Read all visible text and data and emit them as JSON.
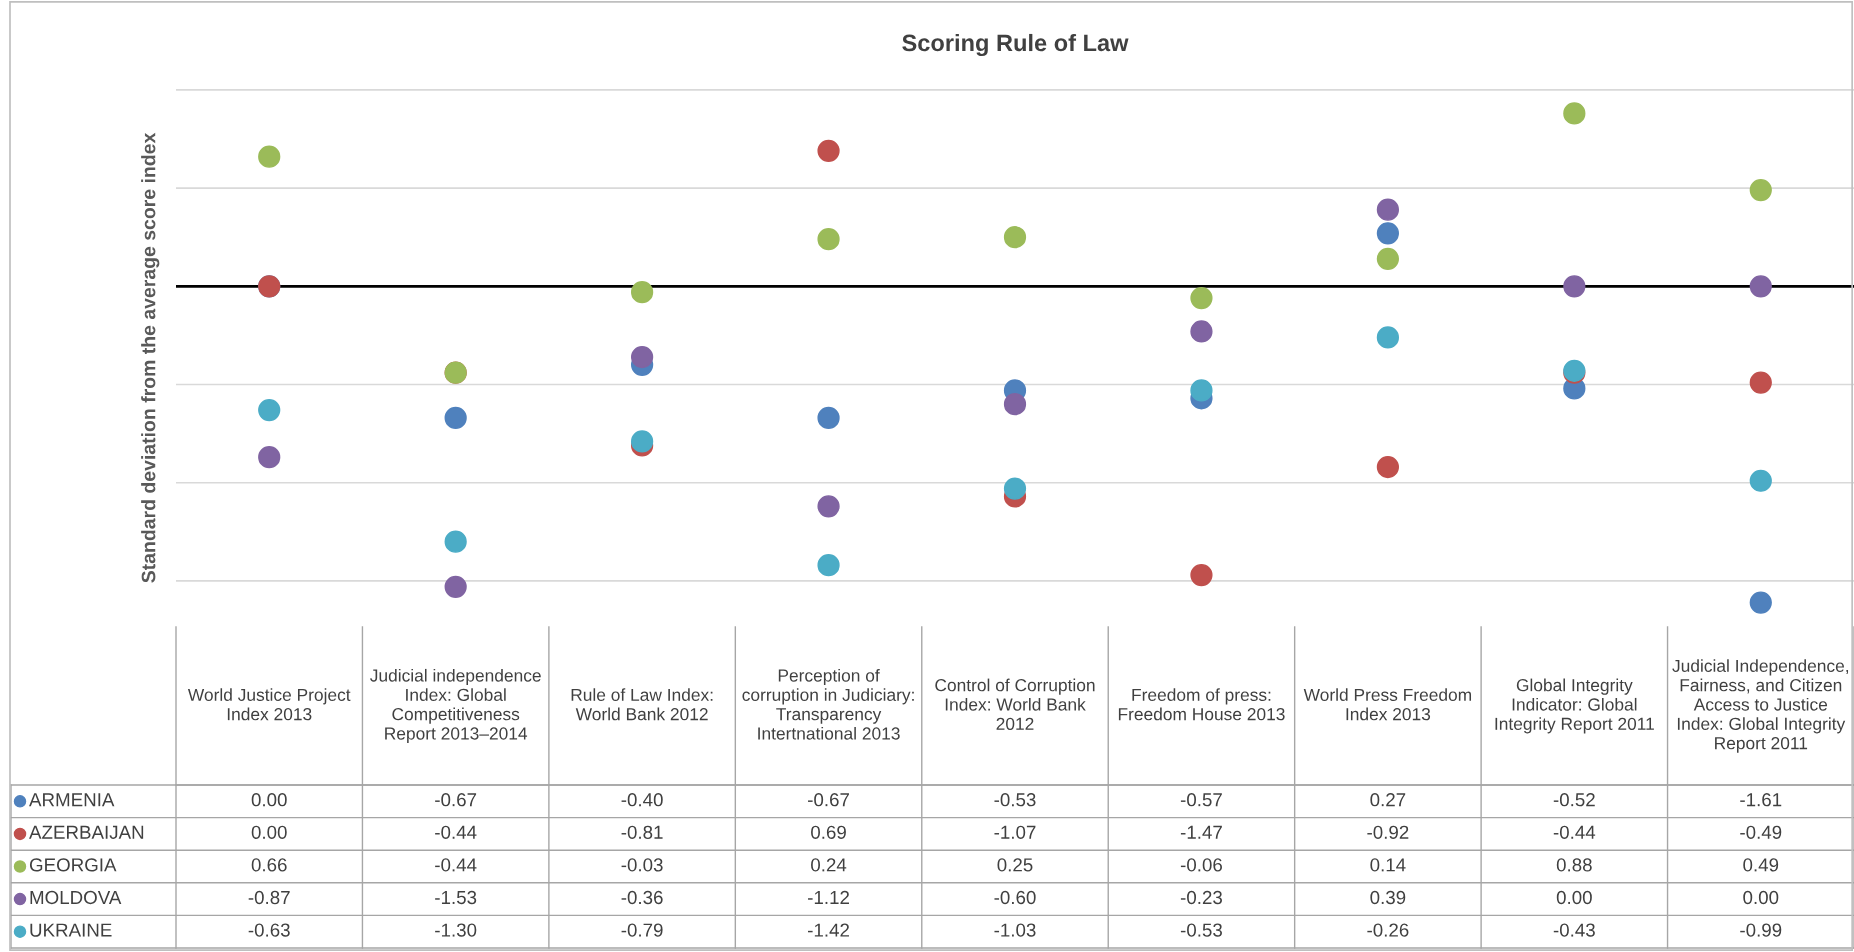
{
  "chart_data": {
    "type": "scatter",
    "title": "Scoring Rule of Law",
    "ylabel": "Standard deviation from the average score index",
    "categories": [
      "World Justice Project Index 2013",
      "Judicial independence Index: Global Competitiveness Report 2013–2014",
      "Rule of Law Index: World Bank 2012",
      "Perception of corruption in Judiciary: Transparency Intertnational 2013",
      "Control of Corruption Index: World Bank 2012",
      "Freedom of press: Freedom House 2013",
      "World Press Freedom Index 2013",
      "Global Integrity Indicator: Global Integrity Report 2011",
      "Judicial Independence, Fairness, and Citizen Access to Justice Index: Global Integrity Report 2011"
    ],
    "series": [
      {
        "name": "ARMENIA",
        "color": "#4f81bd",
        "values": [
          0.0,
          -0.67,
          -0.4,
          -0.67,
          -0.53,
          -0.57,
          0.27,
          -0.52,
          -1.61
        ],
        "value_labels": [
          "0.00",
          "-0.67",
          "-0.40",
          "-0.67",
          "-0.53",
          "-0.57",
          "0.27",
          "-0.52",
          "-1.61"
        ]
      },
      {
        "name": "AZERBAIJAN",
        "color": "#c0504d",
        "values": [
          0.0,
          -0.44,
          -0.81,
          0.69,
          -1.07,
          -1.47,
          -0.92,
          -0.44,
          -0.49
        ],
        "value_labels": [
          "0.00",
          "-0.44",
          "-0.81",
          "0.69",
          "-1.07",
          "-1.47",
          "-0.92",
          "-0.44",
          "-0.49"
        ]
      },
      {
        "name": "GEORGIA",
        "color": "#9bbb59",
        "values": [
          0.66,
          -0.44,
          -0.03,
          0.24,
          0.25,
          -0.06,
          0.14,
          0.88,
          0.49
        ],
        "value_labels": [
          "0.66",
          "-0.44",
          "-0.03",
          "0.24",
          "0.25",
          "-0.06",
          "0.14",
          "0.88",
          "0.49"
        ]
      },
      {
        "name": "MOLDOVA",
        "color": "#8064a2",
        "values": [
          -0.87,
          -1.53,
          -0.36,
          -1.12,
          -0.6,
          -0.23,
          0.39,
          0.0,
          0.0
        ],
        "value_labels": [
          "-0.87",
          "-1.53",
          "-0.36",
          "-1.12",
          "-0.60",
          "-0.23",
          "0.39",
          "0.00",
          "0.00"
        ]
      },
      {
        "name": "UKRAINE",
        "color": "#4bacc6",
        "values": [
          -0.63,
          -1.3,
          -0.79,
          -1.42,
          -1.03,
          -0.53,
          -0.26,
          -0.43,
          -0.99
        ],
        "value_labels": [
          "-0.63",
          "-1.30",
          "-0.79",
          "-1.42",
          "-1.03",
          "-0.53",
          "-0.26",
          "-0.43",
          "-0.99"
        ]
      }
    ],
    "ref_lines": [
      {
        "axis": "y",
        "value": 0,
        "label": null,
        "color": "#000000"
      }
    ],
    "grid": "y",
    "legend": "bottom",
    "marker": "circle"
  }
}
